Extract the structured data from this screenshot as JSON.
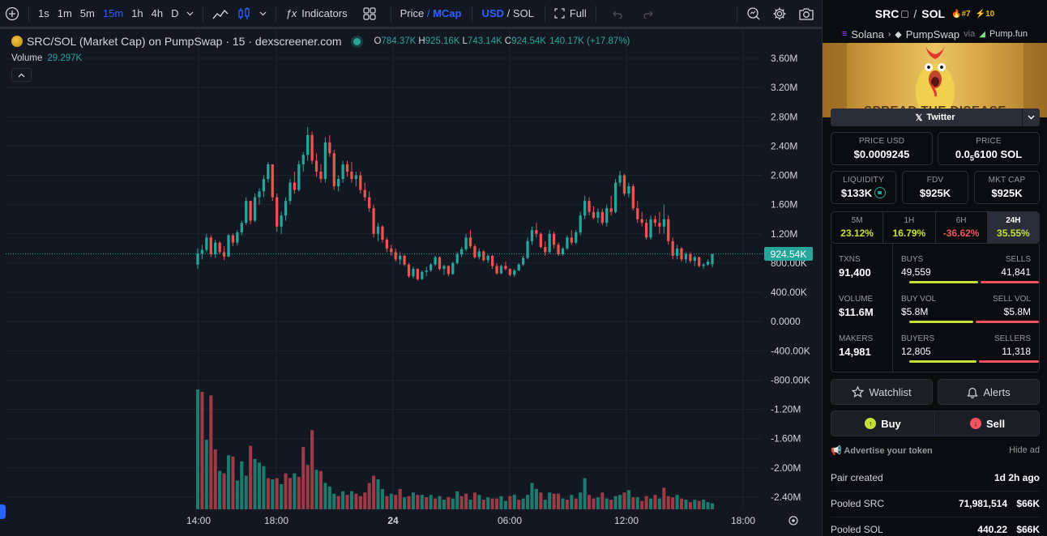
{
  "toolbar": {
    "intervals": [
      "1s",
      "1m",
      "5m",
      "15m",
      "1h",
      "4h",
      "D"
    ],
    "active_interval": "15m",
    "indicators_label": "Indicators",
    "price_label": "Price",
    "slash": "/",
    "mcap_label": "MCap",
    "usd_label": "USD",
    "sol_label": "SOL",
    "full_label": "Full"
  },
  "legend": {
    "title": "SRC/SOL (Market Cap) on PumpSwap · 15 · dexscreener.com",
    "o_label": "O",
    "o_value": "784.37K",
    "h_label": "H",
    "h_value": "925.16K",
    "l_label": "L",
    "l_value": "743.14K",
    "c_label": "C",
    "c_value": "924.54K",
    "change": "140.17K (+17.87%)",
    "volume_label": "Volume",
    "volume_value": "29.297K"
  },
  "chart_data": {
    "type": "candlestick",
    "price_axis_labels": [
      "3.60M",
      "3.20M",
      "2.80M",
      "2.40M",
      "2.00M",
      "1.60M",
      "1.20M",
      "800.00K",
      "400.00K",
      "0.0000",
      "-400.00K",
      "-800.00K",
      "-1.20M",
      "-1.60M",
      "-2.00M",
      "-2.40M"
    ],
    "price_axis_values": [
      3600000,
      3200000,
      2800000,
      2400000,
      2000000,
      1600000,
      1200000,
      800000,
      400000,
      0,
      -400000,
      -800000,
      -1200000,
      -1600000,
      -2000000,
      -2400000
    ],
    "time_axis_labels": [
      "14:00",
      "18:00",
      "24",
      "06:00",
      "12:00",
      "18:00"
    ],
    "time_axis_hours": [
      14,
      18,
      24,
      30,
      36,
      42
    ],
    "last_price_label": "924.54K",
    "last_price_value": 924540,
    "ylim": [
      -2600000,
      3800000
    ],
    "up_color": "#26a69a",
    "down_color": "#ef5350",
    "candles_mcap": [
      [
        780000,
        1000000,
        720000,
        930000
      ],
      [
        930000,
        1050000,
        850000,
        980000
      ],
      [
        980000,
        1200000,
        950000,
        1150000
      ],
      [
        1150000,
        1180000,
        880000,
        920000
      ],
      [
        920000,
        1120000,
        870000,
        1080000
      ],
      [
        1080000,
        1100000,
        920000,
        950000
      ],
      [
        950000,
        1030000,
        840000,
        890000
      ],
      [
        890000,
        1200000,
        880000,
        1180000
      ],
      [
        1180000,
        1210000,
        1030000,
        1080000
      ],
      [
        1080000,
        1250000,
        1040000,
        1220000
      ],
      [
        1220000,
        1380000,
        1180000,
        1350000
      ],
      [
        1350000,
        1700000,
        1320000,
        1650000
      ],
      [
        1650000,
        1620000,
        1330000,
        1380000
      ],
      [
        1380000,
        1750000,
        1360000,
        1700000
      ],
      [
        1700000,
        1820000,
        1600000,
        1780000
      ],
      [
        1780000,
        2000000,
        1700000,
        1950000
      ],
      [
        1950000,
        2180000,
        1900000,
        2150000
      ],
      [
        2150000,
        2100000,
        1650000,
        1700000
      ],
      [
        1700000,
        1750000,
        1230000,
        1300000
      ],
      [
        1300000,
        1500000,
        1200000,
        1450000
      ],
      [
        1450000,
        1700000,
        1380000,
        1650000
      ],
      [
        1650000,
        1950000,
        1600000,
        1900000
      ],
      [
        1900000,
        2050000,
        1750000,
        1800000
      ],
      [
        1800000,
        2200000,
        1780000,
        2150000
      ],
      [
        2150000,
        2320000,
        2050000,
        2280000
      ],
      [
        2280000,
        2660000,
        2200000,
        2550000
      ],
      [
        2550000,
        2600000,
        2150000,
        2200000
      ],
      [
        2200000,
        2300000,
        1980000,
        2050000
      ],
      [
        2050000,
        2150000,
        1900000,
        1950000
      ],
      [
        1950000,
        2520000,
        1900000,
        2450000
      ],
      [
        2450000,
        2550000,
        2250000,
        2300000
      ],
      [
        2300000,
        2350000,
        1800000,
        1850000
      ],
      [
        1850000,
        2000000,
        1780000,
        1950000
      ],
      [
        1950000,
        2200000,
        1900000,
        2150000
      ],
      [
        2150000,
        2200000,
        1980000,
        2050000
      ],
      [
        2050000,
        2180000,
        1900000,
        1950000
      ],
      [
        1950000,
        2050000,
        1850000,
        2000000
      ],
      [
        2000000,
        2050000,
        1750000,
        1800000
      ],
      [
        1800000,
        1900000,
        1650000,
        1700000
      ],
      [
        1700000,
        1780000,
        1500000,
        1550000
      ],
      [
        1550000,
        1600000,
        1150000,
        1200000
      ],
      [
        1200000,
        1350000,
        1100000,
        1300000
      ],
      [
        1300000,
        1320000,
        1080000,
        1120000
      ],
      [
        1120000,
        1150000,
        950000,
        1000000
      ],
      [
        1000000,
        1050000,
        900000,
        950000
      ],
      [
        950000,
        1000000,
        820000,
        850000
      ],
      [
        850000,
        950000,
        780000,
        900000
      ],
      [
        900000,
        920000,
        760000,
        780000
      ],
      [
        780000,
        800000,
        600000,
        620000
      ],
      [
        620000,
        750000,
        590000,
        720000
      ],
      [
        720000,
        730000,
        560000,
        580000
      ],
      [
        580000,
        700000,
        570000,
        680000
      ],
      [
        680000,
        750000,
        620000,
        700000
      ],
      [
        700000,
        800000,
        680000,
        780000
      ],
      [
        780000,
        900000,
        760000,
        880000
      ],
      [
        880000,
        890000,
        700000,
        720000
      ],
      [
        720000,
        780000,
        640000,
        760000
      ],
      [
        760000,
        770000,
        620000,
        650000
      ],
      [
        650000,
        820000,
        640000,
        800000
      ],
      [
        800000,
        950000,
        780000,
        920000
      ],
      [
        920000,
        1020000,
        880000,
        990000
      ],
      [
        990000,
        1200000,
        960000,
        1150000
      ],
      [
        1150000,
        1250000,
        1000000,
        1030000
      ],
      [
        1030000,
        1060000,
        860000,
        880000
      ],
      [
        880000,
        1000000,
        850000,
        960000
      ],
      [
        960000,
        980000,
        820000,
        840000
      ],
      [
        840000,
        920000,
        800000,
        900000
      ],
      [
        900000,
        910000,
        720000,
        760000
      ],
      [
        760000,
        800000,
        640000,
        660000
      ],
      [
        660000,
        780000,
        650000,
        760000
      ],
      [
        760000,
        820000,
        700000,
        720000
      ],
      [
        720000,
        730000,
        620000,
        640000
      ],
      [
        640000,
        720000,
        610000,
        700000
      ],
      [
        700000,
        800000,
        690000,
        780000
      ],
      [
        780000,
        900000,
        760000,
        870000
      ],
      [
        870000,
        1150000,
        850000,
        1100000
      ],
      [
        1100000,
        1300000,
        1050000,
        1250000
      ],
      [
        1250000,
        1350000,
        1150000,
        1200000
      ],
      [
        1200000,
        1220000,
        1000000,
        1020000
      ],
      [
        1020000,
        1100000,
        900000,
        950000
      ],
      [
        950000,
        1250000,
        930000,
        1200000
      ],
      [
        1200000,
        1230000,
        1000000,
        1050000
      ],
      [
        1050000,
        1080000,
        900000,
        920000
      ],
      [
        920000,
        1020000,
        900000,
        1000000
      ],
      [
        1000000,
        1180000,
        980000,
        1150000
      ],
      [
        1150000,
        1250000,
        1050000,
        1080000
      ],
      [
        1080000,
        1250000,
        1060000,
        1220000
      ],
      [
        1220000,
        1500000,
        1180000,
        1450000
      ],
      [
        1450000,
        1720000,
        1400000,
        1650000
      ],
      [
        1650000,
        1700000,
        1450000,
        1500000
      ],
      [
        1500000,
        1580000,
        1400000,
        1420000
      ],
      [
        1420000,
        1550000,
        1350000,
        1500000
      ],
      [
        1500000,
        1540000,
        1320000,
        1350000
      ],
      [
        1350000,
        1600000,
        1300000,
        1550000
      ],
      [
        1550000,
        1720000,
        1450000,
        1500000
      ],
      [
        1500000,
        1950000,
        1480000,
        1900000
      ],
      [
        1900000,
        2060000,
        1850000,
        2000000
      ],
      [
        2000000,
        2020000,
        1720000,
        1750000
      ],
      [
        1750000,
        1900000,
        1700000,
        1850000
      ],
      [
        1850000,
        1880000,
        1520000,
        1550000
      ],
      [
        1550000,
        1650000,
        1350000,
        1400000
      ],
      [
        1400000,
        1500000,
        1300000,
        1350000
      ],
      [
        1350000,
        1400000,
        1120000,
        1150000
      ],
      [
        1150000,
        1450000,
        1120000,
        1400000
      ],
      [
        1400000,
        1450000,
        1300000,
        1350000
      ],
      [
        1350000,
        1500000,
        1200000,
        1300000
      ],
      [
        1300000,
        1600000,
        1200000,
        1400000
      ],
      [
        1400000,
        1450000,
        1050000,
        1100000
      ],
      [
        1100000,
        1150000,
        850000,
        900000
      ],
      [
        900000,
        1050000,
        850000,
        1000000
      ],
      [
        1000000,
        1020000,
        820000,
        850000
      ],
      [
        850000,
        950000,
        800000,
        920000
      ],
      [
        920000,
        950000,
        800000,
        830000
      ],
      [
        830000,
        900000,
        760000,
        880000
      ],
      [
        880000,
        890000,
        740000,
        760000
      ],
      [
        760000,
        800000,
        720000,
        780000
      ],
      [
        780000,
        850000,
        760000,
        820000
      ],
      [
        784370,
        925160,
        743140,
        924540
      ]
    ],
    "volume_bars": [
      [
        1.0,
        1
      ],
      [
        0.98,
        0
      ],
      [
        0.58,
        1
      ],
      [
        0.95,
        0
      ],
      [
        0.5,
        0
      ],
      [
        0.32,
        1
      ],
      [
        0.3,
        0
      ],
      [
        0.45,
        1
      ],
      [
        0.44,
        0
      ],
      [
        0.24,
        1
      ],
      [
        0.4,
        1
      ],
      [
        0.28,
        1
      ],
      [
        0.53,
        0
      ],
      [
        0.42,
        1
      ],
      [
        0.39,
        1
      ],
      [
        0.36,
        1
      ],
      [
        0.26,
        0
      ],
      [
        0.25,
        1
      ],
      [
        0.26,
        0
      ],
      [
        0.21,
        1
      ],
      [
        0.3,
        0
      ],
      [
        0.26,
        0
      ],
      [
        0.3,
        1
      ],
      [
        0.27,
        0
      ],
      [
        0.52,
        0
      ],
      [
        0.37,
        0
      ],
      [
        0.66,
        0
      ],
      [
        0.33,
        1
      ],
      [
        0.32,
        0
      ],
      [
        0.22,
        1
      ],
      [
        0.19,
        1
      ],
      [
        0.13,
        1
      ],
      [
        0.11,
        0
      ],
      [
        0.15,
        1
      ],
      [
        0.12,
        0
      ],
      [
        0.15,
        1
      ],
      [
        0.13,
        0
      ],
      [
        0.11,
        0
      ],
      [
        0.14,
        0
      ],
      [
        0.22,
        0
      ],
      [
        0.28,
        0
      ],
      [
        0.25,
        1
      ],
      [
        0.17,
        1
      ],
      [
        0.11,
        0
      ],
      [
        0.13,
        1
      ],
      [
        0.12,
        0
      ],
      [
        0.17,
        0
      ],
      [
        0.1,
        1
      ],
      [
        0.11,
        0
      ],
      [
        0.14,
        1
      ],
      [
        0.12,
        0
      ],
      [
        0.12,
        1
      ],
      [
        0.1,
        0
      ],
      [
        0.12,
        1
      ],
      [
        0.09,
        0
      ],
      [
        0.11,
        1
      ],
      [
        0.08,
        1
      ],
      [
        0.1,
        0
      ],
      [
        0.09,
        1
      ],
      [
        0.15,
        1
      ],
      [
        0.11,
        0
      ],
      [
        0.13,
        0
      ],
      [
        0.08,
        1
      ],
      [
        0.14,
        0
      ],
      [
        0.12,
        1
      ],
      [
        0.08,
        0
      ],
      [
        0.1,
        1
      ],
      [
        0.09,
        0
      ],
      [
        0.09,
        0
      ],
      [
        0.11,
        1
      ],
      [
        0.07,
        1
      ],
      [
        0.11,
        0
      ],
      [
        0.12,
        1
      ],
      [
        0.08,
        0
      ],
      [
        0.09,
        1
      ],
      [
        0.12,
        1
      ],
      [
        0.22,
        1
      ],
      [
        0.17,
        1
      ],
      [
        0.14,
        0
      ],
      [
        0.08,
        1
      ],
      [
        0.14,
        1
      ],
      [
        0.13,
        0
      ],
      [
        0.13,
        0
      ],
      [
        0.09,
        1
      ],
      [
        0.08,
        0
      ],
      [
        0.12,
        1
      ],
      [
        0.09,
        0
      ],
      [
        0.14,
        1
      ],
      [
        0.26,
        1
      ],
      [
        0.12,
        0
      ],
      [
        0.09,
        0
      ],
      [
        0.1,
        1
      ],
      [
        0.14,
        0
      ],
      [
        0.09,
        1
      ],
      [
        0.08,
        0
      ],
      [
        0.11,
        1
      ],
      [
        0.12,
        1
      ],
      [
        0.14,
        0
      ],
      [
        0.16,
        1
      ],
      [
        0.1,
        0
      ],
      [
        0.1,
        1
      ],
      [
        0.07,
        0
      ],
      [
        0.11,
        0
      ],
      [
        0.09,
        1
      ],
      [
        0.12,
        0
      ],
      [
        0.09,
        1
      ],
      [
        0.18,
        0
      ],
      [
        0.11,
        0
      ],
      [
        0.1,
        0
      ],
      [
        0.12,
        1
      ],
      [
        0.09,
        0
      ],
      [
        0.08,
        1
      ],
      [
        0.06,
        0
      ],
      [
        0.08,
        1
      ],
      [
        0.07,
        0
      ],
      [
        0.08,
        1
      ],
      [
        0.06,
        1
      ],
      [
        0.05,
        1
      ]
    ],
    "volume_max_label": "29.297K"
  },
  "panel": {
    "base": "SRC",
    "slash": "/",
    "quote": "SOL",
    "rank": "#7",
    "boosts": "10",
    "chain": "Solana",
    "dex": "PumpSwap",
    "via": "via",
    "launchpad": "Pump.fun",
    "banner_caption": "SPREAD THE DISEASE",
    "twitter_label": "Twitter",
    "price_usd_label": "PRICE USD",
    "price_usd": "$0.0009245",
    "price_native_label": "PRICE",
    "price_native_prefix": "0.0",
    "price_native_sub": "5",
    "price_native_rest": "6100 SOL",
    "liquidity_label": "LIQUIDITY",
    "liquidity": "$133K",
    "fdv_label": "FDV",
    "fdv": "$925K",
    "mktcap_label": "MKT CAP",
    "mktcap": "$925K",
    "timeframes": [
      {
        "label": "5M",
        "value": "23.12%"
      },
      {
        "label": "1H",
        "value": "16.79%"
      },
      {
        "label": "6H",
        "value": "-36.62%"
      },
      {
        "label": "24H",
        "value": "35.55%"
      }
    ],
    "txns_label": "TXNS",
    "txns": "91,400",
    "buys_label": "BUYS",
    "buys": "49,559",
    "sells_label": "SELLS",
    "sells": "41,841",
    "buys_ratio": 0.542,
    "volume_label": "VOLUME",
    "volume": "$11.6M",
    "buy_vol_label": "BUY VOL",
    "buy_vol": "$5.8M",
    "sell_vol_label": "SELL VOL",
    "sell_vol": "$5.8M",
    "buy_vol_ratio": 0.5,
    "makers_label": "MAKERS",
    "makers": "14,981",
    "buyers_label": "BUYERS",
    "buyers": "12,805",
    "sellers_label": "SELLERS",
    "sellers": "11,318",
    "buyers_ratio": 0.531,
    "watchlist_label": "Watchlist",
    "alerts_label": "Alerts",
    "buy_label": "Buy",
    "sell_label": "Sell",
    "advertise_label": "Advertise your token",
    "hide_ad_label": "Hide ad",
    "pair_created_label": "Pair created",
    "pair_created": "1d 2h ago",
    "pooled_base_label": "Pooled SRC",
    "pooled_base_amount": "71,981,514",
    "pooled_base_usd": "$66K",
    "pooled_quote_label": "Pooled SOL",
    "pooled_quote_amount": "440.22",
    "pooled_quote_usd": "$66K"
  },
  "colors": {
    "accent": "#2962ff",
    "up": "#26a69a",
    "down": "#ef5350",
    "positive_pct": "#c6e03b",
    "negative_pct": "#f0525f"
  }
}
